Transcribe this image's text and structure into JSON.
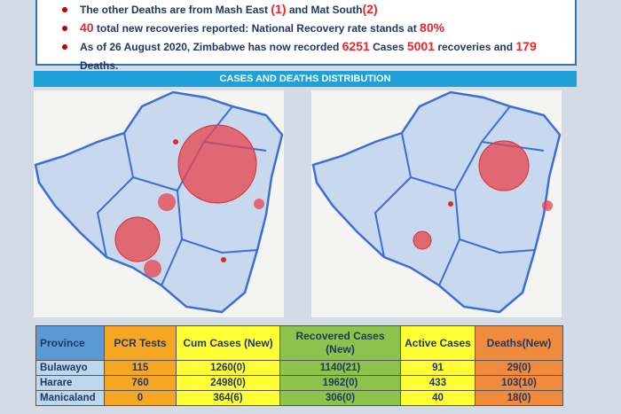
{
  "bullets": [
    {
      "parts": [
        {
          "text": "The other Deaths are from Mash East "
        },
        {
          "text": "(1)",
          "color": "#e8262b"
        },
        {
          "text": " and Mat South"
        },
        {
          "text": "(2)",
          "color": "#e8262b"
        }
      ]
    },
    {
      "parts": [
        {
          "text": "40",
          "color": "#e8262b"
        },
        {
          "text": " total new recoveries reported:  National Recovery rate stands at "
        },
        {
          "text": "80%",
          "color": "#e8262b"
        }
      ]
    },
    {
      "parts": [
        {
          "text": "As of 26 August 2020, Zimbabwe has now recorded "
        },
        {
          "text": "6251",
          "color": "#e8262b"
        },
        {
          "text": " Cases "
        },
        {
          "text": "5001",
          "color": "#e8262b"
        },
        {
          "text": " recoveries and "
        },
        {
          "text": "179",
          "color": "#e8262b"
        },
        {
          "text": " Deaths."
        }
      ]
    }
  ],
  "banner": "CASES AND DEATHS DISTRIBUTION",
  "table": {
    "column_colors": [
      "#5b9bd5",
      "#f5a623",
      "#ffff33",
      "#8cc34b",
      "#ffff33",
      "#f08a3c"
    ],
    "header": [
      "Province",
      "PCR Tests",
      "Cum Cases (New)",
      "Recovered Cases (New)",
      "Active Cases",
      "Deaths(New)"
    ],
    "rows": [
      [
        "Bulawayo",
        "115",
        "1260(0)",
        "1140(21)",
        "91",
        "29(0)"
      ],
      [
        "Harare",
        "760",
        "2498(0)",
        "1962(0)",
        "433",
        "103(10)"
      ],
      [
        "Manicaland",
        "0",
        "364(6)",
        "306(0)",
        "40",
        "18(0)"
      ]
    ]
  }
}
